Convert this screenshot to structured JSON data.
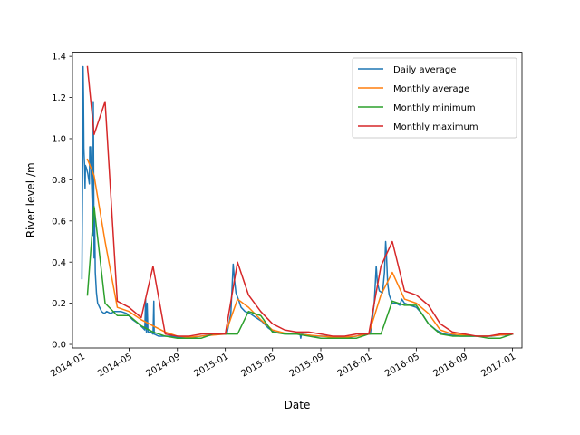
{
  "chart_data": {
    "type": "line",
    "title": "",
    "xlabel": "Date",
    "ylabel": "River level /m",
    "x_type": "date",
    "xlim": [
      "2013-12-08",
      "2017-01-25"
    ],
    "ylim": [
      -0.0175,
      1.42
    ],
    "x_ticks": [
      {
        "date": "2014-01-01",
        "label": "2014-01"
      },
      {
        "date": "2014-05-01",
        "label": "2014-05"
      },
      {
        "date": "2014-09-01",
        "label": "2014-09"
      },
      {
        "date": "2015-01-01",
        "label": "2015-01"
      },
      {
        "date": "2015-05-01",
        "label": "2015-05"
      },
      {
        "date": "2015-09-01",
        "label": "2015-09"
      },
      {
        "date": "2016-01-01",
        "label": "2016-01"
      },
      {
        "date": "2016-05-01",
        "label": "2016-05"
      },
      {
        "date": "2016-09-01",
        "label": "2016-09"
      },
      {
        "date": "2017-01-01",
        "label": "2017-01"
      }
    ],
    "y_ticks": [
      {
        "value": 0.0,
        "label": "0.0"
      },
      {
        "value": 0.2,
        "label": "0.2"
      },
      {
        "value": 0.4,
        "label": "0.4"
      },
      {
        "value": 0.6,
        "label": "0.6"
      },
      {
        "value": 0.8,
        "label": "0.8"
      },
      {
        "value": 1.0,
        "label": "1.0"
      },
      {
        "value": 1.2,
        "label": "1.2"
      },
      {
        "value": 1.4,
        "label": "1.4"
      }
    ],
    "grid": false,
    "legend_position": "upper right",
    "series": [
      {
        "name": "Daily average",
        "color": "#1f77b4",
        "points": [
          [
            "2014-01-01",
            0.32
          ],
          [
            "2014-01-03",
            0.9
          ],
          [
            "2014-01-04",
            1.35
          ],
          [
            "2014-01-05",
            1.2
          ],
          [
            "2014-01-06",
            0.95
          ],
          [
            "2014-01-08",
            0.86
          ],
          [
            "2014-01-09",
            0.76
          ],
          [
            "2014-01-10",
            0.87
          ],
          [
            "2014-01-12",
            0.86
          ],
          [
            "2014-01-16",
            0.83
          ],
          [
            "2014-01-20",
            0.78
          ],
          [
            "2014-01-21",
            0.96
          ],
          [
            "2014-01-23",
            0.96
          ],
          [
            "2014-01-25",
            0.82
          ],
          [
            "2014-01-27",
            0.7
          ],
          [
            "2014-01-29",
            0.53
          ],
          [
            "2014-01-30",
            1.18
          ],
          [
            "2014-02-01",
            0.42
          ],
          [
            "2014-02-02",
            0.66
          ],
          [
            "2014-02-04",
            0.35
          ],
          [
            "2014-02-07",
            0.25
          ],
          [
            "2014-02-10",
            0.2
          ],
          [
            "2014-02-15",
            0.18
          ],
          [
            "2014-02-20",
            0.16
          ],
          [
            "2014-02-27",
            0.15
          ],
          [
            "2014-03-05",
            0.16
          ],
          [
            "2014-03-15",
            0.15
          ],
          [
            "2014-03-25",
            0.16
          ],
          [
            "2014-04-10",
            0.16
          ],
          [
            "2014-04-25",
            0.15
          ],
          [
            "2014-05-10",
            0.12
          ],
          [
            "2014-05-25",
            0.1
          ],
          [
            "2014-06-05",
            0.08
          ],
          [
            "2014-06-10",
            0.07
          ],
          [
            "2014-06-12",
            0.22
          ],
          [
            "2014-06-14",
            0.06
          ],
          [
            "2014-06-16",
            0.2
          ],
          [
            "2014-06-18",
            0.06
          ],
          [
            "2014-06-25",
            0.06
          ],
          [
            "2014-07-01",
            0.05
          ],
          [
            "2014-07-03",
            0.21
          ],
          [
            "2014-07-04",
            0.05
          ],
          [
            "2014-07-15",
            0.04
          ],
          [
            "2014-08-01",
            0.04
          ],
          [
            "2014-08-15",
            0.04
          ],
          [
            "2014-09-01",
            0.035
          ],
          [
            "2014-09-20",
            0.035
          ],
          [
            "2014-10-10",
            0.035
          ],
          [
            "2014-11-01",
            0.04
          ],
          [
            "2014-11-25",
            0.045
          ],
          [
            "2014-12-15",
            0.05
          ],
          [
            "2015-01-05",
            0.05
          ],
          [
            "2015-01-15",
            0.15
          ],
          [
            "2015-01-21",
            0.39
          ],
          [
            "2015-01-24",
            0.32
          ],
          [
            "2015-01-28",
            0.25
          ],
          [
            "2015-02-03",
            0.22
          ],
          [
            "2015-02-10",
            0.18
          ],
          [
            "2015-02-20",
            0.16
          ],
          [
            "2015-03-05",
            0.15
          ],
          [
            "2015-03-20",
            0.13
          ],
          [
            "2015-04-05",
            0.11
          ],
          [
            "2015-04-20",
            0.08
          ],
          [
            "2015-05-05",
            0.06
          ],
          [
            "2015-05-20",
            0.055
          ],
          [
            "2015-06-10",
            0.05
          ],
          [
            "2015-07-01",
            0.05
          ],
          [
            "2015-07-10",
            0.05
          ],
          [
            "2015-07-12",
            0.03
          ],
          [
            "2015-07-14",
            0.05
          ],
          [
            "2015-08-01",
            0.045
          ],
          [
            "2015-08-20",
            0.04
          ],
          [
            "2015-09-10",
            0.04
          ],
          [
            "2015-10-01",
            0.035
          ],
          [
            "2015-10-20",
            0.035
          ],
          [
            "2015-11-10",
            0.035
          ],
          [
            "2015-12-01",
            0.04
          ],
          [
            "2015-12-20",
            0.05
          ],
          [
            "2016-01-05",
            0.05
          ],
          [
            "2016-01-15",
            0.2
          ],
          [
            "2016-01-20",
            0.38
          ],
          [
            "2016-01-23",
            0.3
          ],
          [
            "2016-01-28",
            0.26
          ],
          [
            "2016-02-05",
            0.25
          ],
          [
            "2016-02-10",
            0.35
          ],
          [
            "2016-02-13",
            0.5
          ],
          [
            "2016-02-15",
            0.44
          ],
          [
            "2016-02-18",
            0.3
          ],
          [
            "2016-02-22",
            0.24
          ],
          [
            "2016-03-01",
            0.2
          ],
          [
            "2016-03-10",
            0.2
          ],
          [
            "2016-03-20",
            0.19
          ],
          [
            "2016-03-25",
            0.22
          ],
          [
            "2016-04-01",
            0.2
          ],
          [
            "2016-04-15",
            0.19
          ],
          [
            "2016-05-01",
            0.18
          ],
          [
            "2016-05-15",
            0.15
          ],
          [
            "2016-06-01",
            0.1
          ],
          [
            "2016-06-20",
            0.07
          ],
          [
            "2016-07-10",
            0.05
          ],
          [
            "2016-08-01",
            0.045
          ],
          [
            "2016-08-20",
            0.04
          ],
          [
            "2016-09-10",
            0.04
          ],
          [
            "2016-10-01",
            0.04
          ],
          [
            "2016-10-20",
            0.04
          ],
          [
            "2016-11-10",
            0.04
          ],
          [
            "2016-12-01",
            0.045
          ],
          [
            "2016-12-20",
            0.045
          ],
          [
            "2017-01-01",
            0.05
          ]
        ]
      },
      {
        "name": "Monthly average",
        "color": "#ff7f0e",
        "points": [
          [
            "2014-01-15",
            0.9
          ],
          [
            "2014-02-01",
            0.82
          ],
          [
            "2014-03-01",
            0.5
          ],
          [
            "2014-04-01",
            0.18
          ],
          [
            "2014-05-01",
            0.16
          ],
          [
            "2014-06-01",
            0.12
          ],
          [
            "2014-07-01",
            0.09
          ],
          [
            "2014-08-01",
            0.06
          ],
          [
            "2014-09-01",
            0.04
          ],
          [
            "2014-10-01",
            0.035
          ],
          [
            "2014-11-01",
            0.04
          ],
          [
            "2014-12-01",
            0.045
          ],
          [
            "2015-01-01",
            0.05
          ],
          [
            "2015-02-01",
            0.22
          ],
          [
            "2015-03-01",
            0.18
          ],
          [
            "2015-04-01",
            0.12
          ],
          [
            "2015-05-01",
            0.07
          ],
          [
            "2015-06-01",
            0.055
          ],
          [
            "2015-07-01",
            0.05
          ],
          [
            "2015-08-01",
            0.045
          ],
          [
            "2015-09-01",
            0.04
          ],
          [
            "2015-10-01",
            0.035
          ],
          [
            "2015-11-01",
            0.035
          ],
          [
            "2015-12-01",
            0.04
          ],
          [
            "2016-01-01",
            0.05
          ],
          [
            "2016-02-01",
            0.24
          ],
          [
            "2016-03-01",
            0.35
          ],
          [
            "2016-04-01",
            0.22
          ],
          [
            "2016-05-01",
            0.2
          ],
          [
            "2016-06-01",
            0.15
          ],
          [
            "2016-07-01",
            0.07
          ],
          [
            "2016-08-01",
            0.05
          ],
          [
            "2016-09-01",
            0.045
          ],
          [
            "2016-10-01",
            0.04
          ],
          [
            "2016-11-01",
            0.04
          ],
          [
            "2016-12-01",
            0.045
          ],
          [
            "2017-01-01",
            0.05
          ]
        ]
      },
      {
        "name": "Monthly minimum",
        "color": "#2ca02c",
        "points": [
          [
            "2014-01-15",
            0.24
          ],
          [
            "2014-02-01",
            0.67
          ],
          [
            "2014-03-01",
            0.2
          ],
          [
            "2014-04-01",
            0.14
          ],
          [
            "2014-05-01",
            0.14
          ],
          [
            "2014-06-01",
            0.09
          ],
          [
            "2014-07-01",
            0.06
          ],
          [
            "2014-08-01",
            0.04
          ],
          [
            "2014-09-01",
            0.03
          ],
          [
            "2014-10-01",
            0.03
          ],
          [
            "2014-11-01",
            0.03
          ],
          [
            "2014-12-01",
            0.05
          ],
          [
            "2015-01-01",
            0.05
          ],
          [
            "2015-02-01",
            0.05
          ],
          [
            "2015-03-01",
            0.16
          ],
          [
            "2015-04-01",
            0.14
          ],
          [
            "2015-05-01",
            0.06
          ],
          [
            "2015-06-01",
            0.05
          ],
          [
            "2015-07-01",
            0.05
          ],
          [
            "2015-08-01",
            0.04
          ],
          [
            "2015-09-01",
            0.03
          ],
          [
            "2015-10-01",
            0.03
          ],
          [
            "2015-11-01",
            0.03
          ],
          [
            "2015-12-01",
            0.03
          ],
          [
            "2016-01-01",
            0.05
          ],
          [
            "2016-02-01",
            0.05
          ],
          [
            "2016-03-01",
            0.21
          ],
          [
            "2016-04-01",
            0.19
          ],
          [
            "2016-05-01",
            0.19
          ],
          [
            "2016-06-01",
            0.1
          ],
          [
            "2016-07-01",
            0.05
          ],
          [
            "2016-08-01",
            0.04
          ],
          [
            "2016-09-01",
            0.04
          ],
          [
            "2016-10-01",
            0.04
          ],
          [
            "2016-11-01",
            0.03
          ],
          [
            "2016-12-01",
            0.03
          ],
          [
            "2017-01-01",
            0.05
          ]
        ]
      },
      {
        "name": "Monthly maximum",
        "color": "#d62728",
        "points": [
          [
            "2014-01-15",
            1.35
          ],
          [
            "2014-02-01",
            1.02
          ],
          [
            "2014-03-01",
            1.18
          ],
          [
            "2014-04-01",
            0.21
          ],
          [
            "2014-05-01",
            0.18
          ],
          [
            "2014-06-01",
            0.13
          ],
          [
            "2014-07-01",
            0.38
          ],
          [
            "2014-08-01",
            0.05
          ],
          [
            "2014-09-01",
            0.04
          ],
          [
            "2014-10-01",
            0.04
          ],
          [
            "2014-11-01",
            0.05
          ],
          [
            "2014-12-01",
            0.05
          ],
          [
            "2015-01-01",
            0.05
          ],
          [
            "2015-02-01",
            0.4
          ],
          [
            "2015-03-01",
            0.24
          ],
          [
            "2015-04-01",
            0.16
          ],
          [
            "2015-05-01",
            0.1
          ],
          [
            "2015-06-01",
            0.07
          ],
          [
            "2015-07-01",
            0.06
          ],
          [
            "2015-08-01",
            0.06
          ],
          [
            "2015-09-01",
            0.05
          ],
          [
            "2015-10-01",
            0.04
          ],
          [
            "2015-11-01",
            0.04
          ],
          [
            "2015-12-01",
            0.05
          ],
          [
            "2016-01-01",
            0.05
          ],
          [
            "2016-02-01",
            0.38
          ],
          [
            "2016-03-01",
            0.5
          ],
          [
            "2016-04-01",
            0.26
          ],
          [
            "2016-05-01",
            0.24
          ],
          [
            "2016-06-01",
            0.19
          ],
          [
            "2016-07-01",
            0.1
          ],
          [
            "2016-08-01",
            0.06
          ],
          [
            "2016-09-01",
            0.05
          ],
          [
            "2016-10-01",
            0.04
          ],
          [
            "2016-11-01",
            0.04
          ],
          [
            "2016-12-01",
            0.05
          ],
          [
            "2017-01-01",
            0.05
          ]
        ]
      }
    ]
  }
}
